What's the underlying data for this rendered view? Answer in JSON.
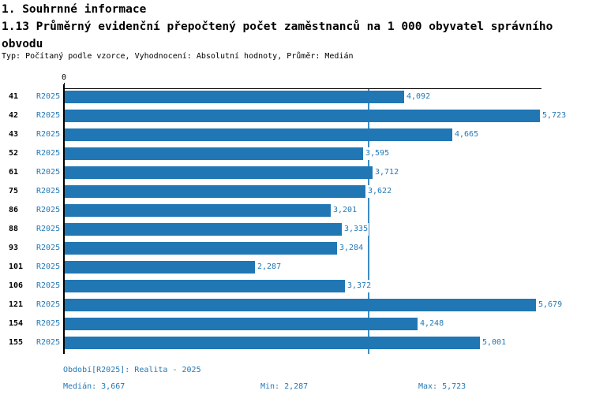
{
  "header": {
    "section_title": "1. Souhrnné informace",
    "indicator_title_line1": "1.13 Průměrný evidenční přepočtený počet zaměstnanců na 1 000 obyvatel správního",
    "indicator_title_line2": "obvodu",
    "meta": "Typ: Počítaný podle vzorce, Vyhodnocení: Absolutní hodnoty, Průměr: Medián"
  },
  "chart_data": {
    "type": "bar",
    "orientation": "horizontal",
    "title": "1.13 Průměrný evidenční přepočtený počet zaměstnanců na 1 000 obyvatel správního obvodu",
    "categories": [
      "41",
      "42",
      "43",
      "52",
      "61",
      "75",
      "86",
      "88",
      "93",
      "101",
      "106",
      "121",
      "154",
      "155"
    ],
    "series": [
      {
        "name": "R2025",
        "values": [
          4.092,
          5.723,
          4.665,
          3.595,
          3.712,
          3.622,
          3.201,
          3.335,
          3.284,
          2.287,
          3.372,
          5.679,
          4.248,
          5.001
        ],
        "value_labels": [
          "4,092",
          "5,723",
          "4,665",
          "3,595",
          "3,712",
          "3,622",
          "3,201",
          "3,335",
          "3,284",
          "2,287",
          "3,372",
          "5,679",
          "4,248",
          "5,001"
        ]
      }
    ],
    "x_axis": {
      "origin_label": "0",
      "xlim": [
        0,
        5.76
      ],
      "grid": false
    },
    "median": 3.667,
    "legend_position": "none"
  },
  "footer": {
    "period": "Období[R2025]: Realita - 2025",
    "median": "Medián: 3,667",
    "min": "Min: 2,287",
    "max": "Max: 5,723"
  },
  "colors": {
    "bar": "#2077b4",
    "label_blue": "#2479b6",
    "median_line": "#3d8cc4",
    "axis": "#000000"
  }
}
